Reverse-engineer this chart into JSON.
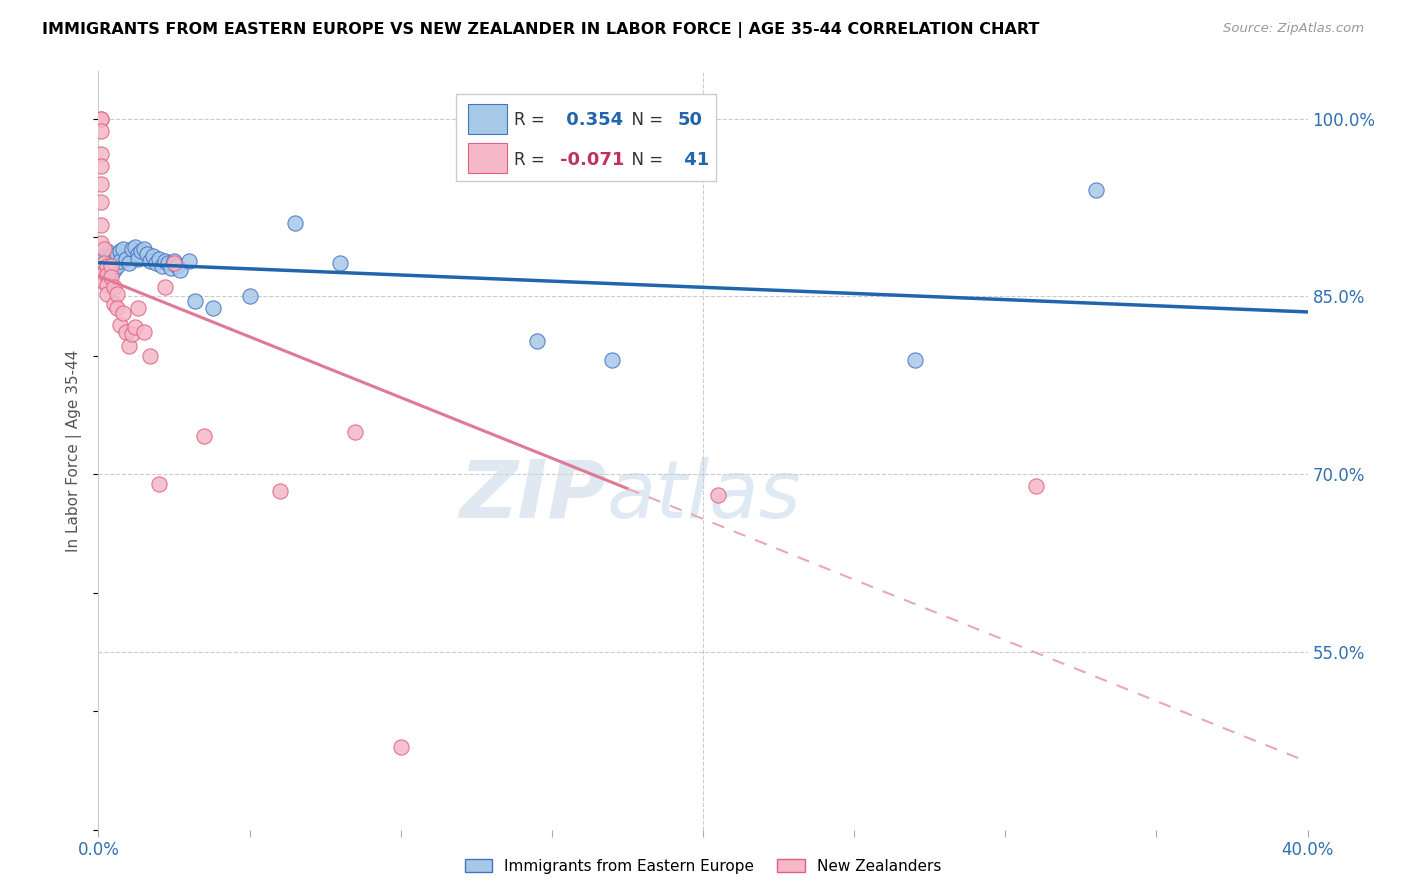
{
  "title": "IMMIGRANTS FROM EASTERN EUROPE VS NEW ZEALANDER IN LABOR FORCE | AGE 35-44 CORRELATION CHART",
  "source": "Source: ZipAtlas.com",
  "ylabel": "In Labor Force | Age 35-44",
  "xlim": [
    0.0,
    0.4
  ],
  "ylim": [
    0.4,
    1.04
  ],
  "xtick_positions": [
    0.0,
    0.05,
    0.1,
    0.15,
    0.2,
    0.25,
    0.3,
    0.35,
    0.4
  ],
  "xticklabels": [
    "0.0%",
    "",
    "",
    "",
    "",
    "",
    "",
    "",
    "40.0%"
  ],
  "yticks_right": [
    1.0,
    0.85,
    0.7,
    0.55
  ],
  "yticklabels_right": [
    "100.0%",
    "85.0%",
    "70.0%",
    "55.0%"
  ],
  "R_blue": 0.354,
  "N_blue": 50,
  "R_pink": -0.071,
  "N_pink": 41,
  "blue_dot_color": "#a8c8e8",
  "blue_edge_color": "#4472c4",
  "pink_dot_color": "#f4b8c8",
  "pink_edge_color": "#e06080",
  "blue_line_color": "#2166ac",
  "pink_solid_color": "#e07898",
  "pink_dash_color": "#e8a8b8",
  "legend_label_blue": "Immigrants from Eastern Europe",
  "legend_label_pink": "New Zealanders",
  "watermark_zip": "ZIP",
  "watermark_atlas": "atlas",
  "blue_x": [
    0.001,
    0.001,
    0.002,
    0.002,
    0.003,
    0.003,
    0.003,
    0.003,
    0.004,
    0.004,
    0.004,
    0.004,
    0.005,
    0.005,
    0.005,
    0.006,
    0.006,
    0.007,
    0.007,
    0.008,
    0.009,
    0.01,
    0.011,
    0.012,
    0.013,
    0.013,
    0.014,
    0.015,
    0.016,
    0.017,
    0.018,
    0.019,
    0.02,
    0.021,
    0.022,
    0.023,
    0.024,
    0.025,
    0.026,
    0.027,
    0.03,
    0.032,
    0.038,
    0.05,
    0.065,
    0.08,
    0.145,
    0.17,
    0.27,
    0.33
  ],
  "blue_y": [
    0.88,
    0.872,
    0.878,
    0.87,
    0.888,
    0.882,
    0.876,
    0.87,
    0.884,
    0.878,
    0.874,
    0.868,
    0.882,
    0.876,
    0.872,
    0.886,
    0.876,
    0.888,
    0.88,
    0.89,
    0.882,
    0.878,
    0.89,
    0.892,
    0.886,
    0.882,
    0.888,
    0.89,
    0.886,
    0.88,
    0.884,
    0.878,
    0.882,
    0.876,
    0.88,
    0.878,
    0.874,
    0.88,
    0.876,
    0.872,
    0.88,
    0.846,
    0.84,
    0.85,
    0.912,
    0.878,
    0.812,
    0.796,
    0.796,
    0.94
  ],
  "pink_x": [
    0.001,
    0.001,
    0.001,
    0.001,
    0.001,
    0.001,
    0.001,
    0.001,
    0.001,
    0.002,
    0.002,
    0.002,
    0.002,
    0.003,
    0.003,
    0.003,
    0.003,
    0.004,
    0.004,
    0.005,
    0.005,
    0.006,
    0.006,
    0.007,
    0.008,
    0.009,
    0.01,
    0.011,
    0.012,
    0.013,
    0.015,
    0.017,
    0.02,
    0.022,
    0.025,
    0.035,
    0.06,
    0.085,
    0.1,
    0.205,
    0.31
  ],
  "pink_y": [
    1.0,
    1.0,
    0.99,
    0.97,
    0.96,
    0.945,
    0.93,
    0.91,
    0.895,
    0.89,
    0.878,
    0.87,
    0.862,
    0.876,
    0.868,
    0.86,
    0.852,
    0.876,
    0.866,
    0.858,
    0.844,
    0.852,
    0.84,
    0.826,
    0.836,
    0.82,
    0.808,
    0.818,
    0.824,
    0.84,
    0.82,
    0.8,
    0.692,
    0.858,
    0.878,
    0.732,
    0.686,
    0.736,
    0.47,
    0.682,
    0.69
  ]
}
